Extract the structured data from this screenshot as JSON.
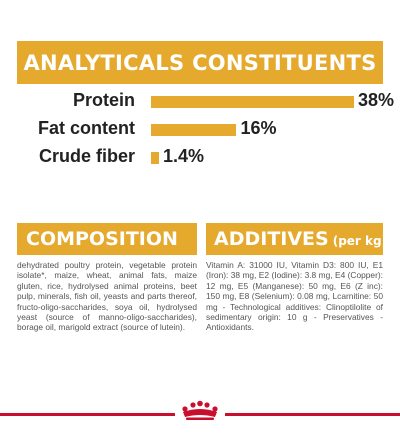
{
  "analytical": {
    "title": "ANALYTICALS CONSTITUENTS",
    "rows": [
      {
        "label": "Protein",
        "value_text": "38%",
        "value": 38
      },
      {
        "label": "Fat content",
        "value_text": "16%",
        "value": 16
      },
      {
        "label": "Crude fiber",
        "value_text": "1.4%",
        "value": 1.4
      }
    ]
  },
  "composition": {
    "title": "COMPOSITION",
    "text": "dehydrated poultry protein, vegetable protein isolate*, maize, wheat, animal fats, maize gluten, rice, hydrolysed animal proteins, beet pulp, minerals, fish oil, yeasts and parts thereof, fructo-oligo-saccharides, soya oil, hydrolysed yeast (source of manno-oligo-saccharides), borage oil, marigold extract (source of lutein)."
  },
  "additives": {
    "title": "ADDITIVES",
    "unit": "(per kg)",
    "text": "Vitamin A: 31000 IU, Vitamin D3: 800 IU, E1 (Iron): 38 mg, E2 (Iodine): 3.8 mg, E4 (Copper): 12 mg, E5 (Manganese): 50 mg, E6 (Z inc): 150 mg, E8 (Selenium): 0.08 mg, Lcarnitine: 50 mg - Technological additives: Clinoptilolite of sedimentary origin: 10 g - Preservatives - Antioxidants."
  },
  "colors": {
    "accent": "#e5a92d",
    "brand_red": "#c8102e"
  }
}
